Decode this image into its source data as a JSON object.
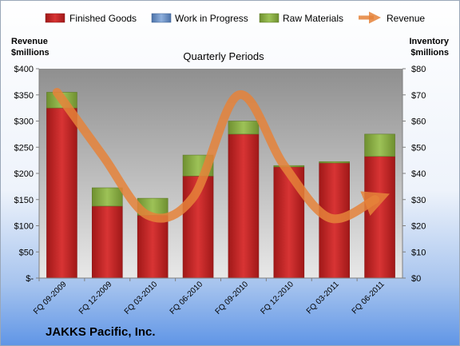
{
  "company": "JAKKS Pacific, Inc.",
  "chart_data": {
    "type": "bar",
    "stacked": true,
    "title": "Quarterly Periods",
    "categories": [
      "FQ 09-2009",
      "FQ 12-2009",
      "FQ 03-2010",
      "FQ 06-2010",
      "FQ 09-2010",
      "FQ 12-2010",
      "FQ 03-2011",
      "FQ 06-2011"
    ],
    "left_axis": {
      "label_line1": "Revenue",
      "label_line2": "$millions",
      "ylim": [
        0,
        400
      ],
      "ticks": [
        0,
        50,
        100,
        150,
        200,
        250,
        300,
        350,
        400
      ],
      "tick_labels": [
        "$-",
        "$50",
        "$100",
        "$150",
        "$200",
        "$250",
        "$300",
        "$350",
        "$400"
      ]
    },
    "right_axis": {
      "label_line1": "Inventory",
      "label_line2": "$millions",
      "ylim": [
        0,
        80
      ],
      "ticks": [
        0,
        10,
        20,
        30,
        40,
        50,
        60,
        70,
        80
      ],
      "tick_labels": [
        "$0",
        "$10",
        "$20",
        "$30",
        "$40",
        "$50",
        "$60",
        "$70",
        "$80"
      ]
    },
    "series": [
      {
        "name": "Finished Goods",
        "axis": "right",
        "kind": "bar",
        "color": "#cc2a2a",
        "values": [
          65,
          27.5,
          24,
          39,
          55,
          42.5,
          44,
          46.5
        ]
      },
      {
        "name": "Work in Progress",
        "axis": "right",
        "kind": "bar",
        "color": "#6d95cc",
        "values": [
          0,
          0,
          0,
          0,
          0,
          0,
          0,
          0
        ]
      },
      {
        "name": "Raw Materials",
        "axis": "right",
        "kind": "bar",
        "color": "#8fb347",
        "values": [
          6,
          7,
          6.5,
          8,
          5,
          0.5,
          0.5,
          8.5
        ]
      },
      {
        "name": "Revenue",
        "axis": "left",
        "kind": "line",
        "color": "#e5823a",
        "values": [
          355,
          235,
          120,
          155,
          350,
          215,
          115,
          150
        ]
      }
    ],
    "legend_position": "top",
    "grid": false
  }
}
